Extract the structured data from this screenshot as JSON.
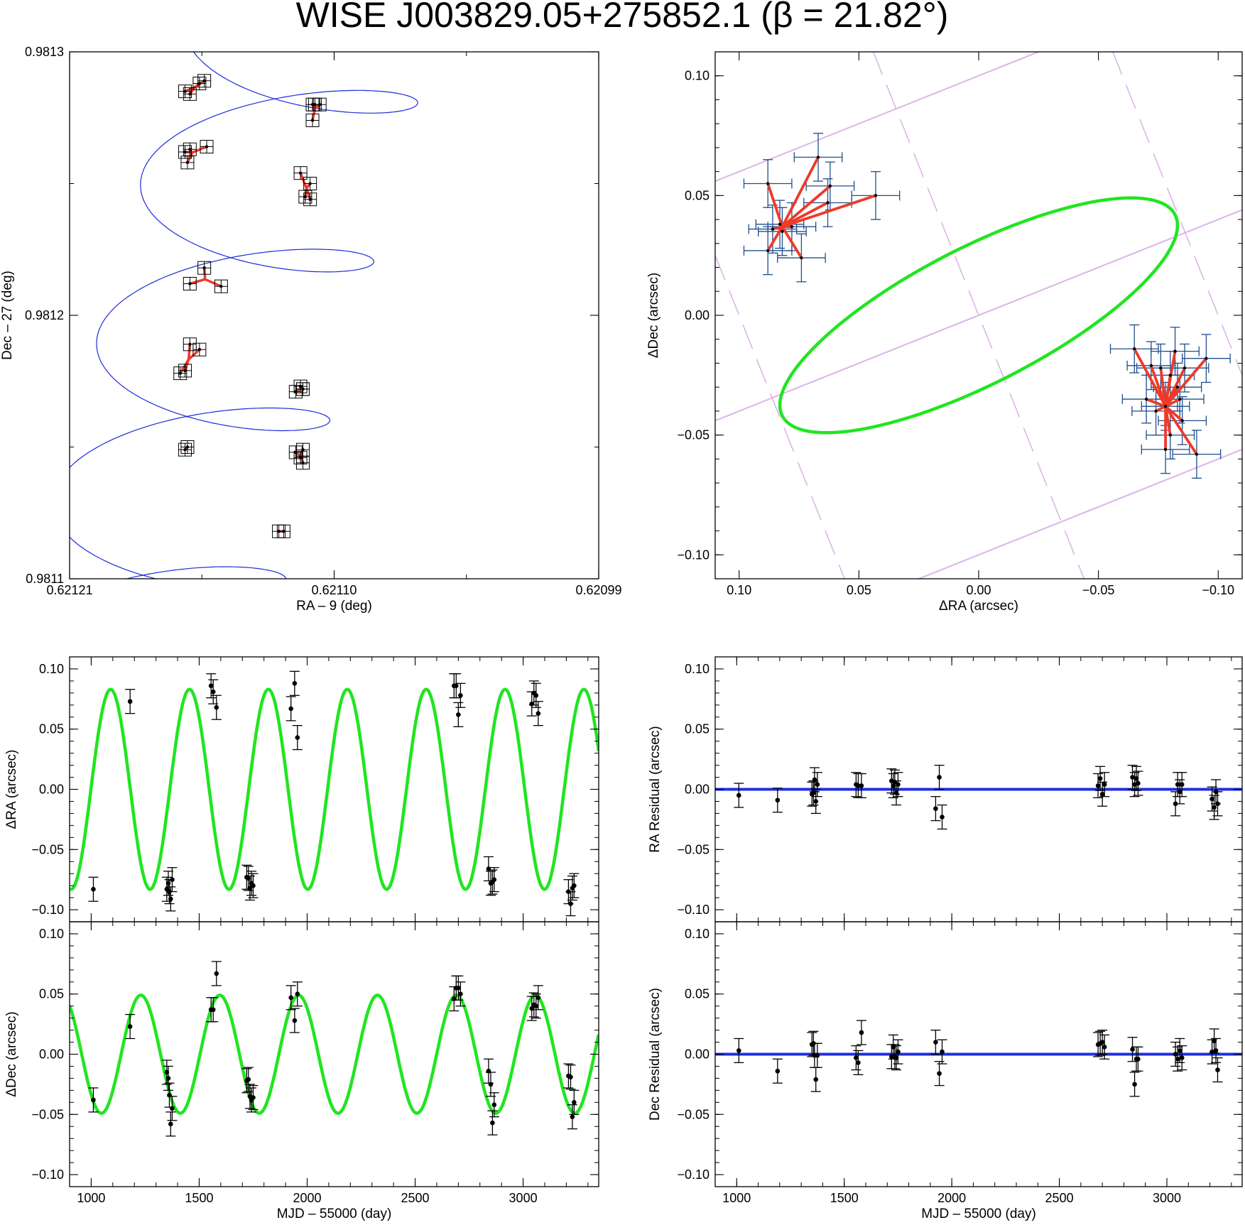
{
  "title": "WISE J003829.05+275852.1   (β = 21.82°)",
  "colors": {
    "fit": "#21e521",
    "track": "#1c2bd9",
    "red": "#ee3a2a",
    "errorbar": "#1f4e8c",
    "parallax_lines": "#dcb4e8",
    "residual_line": "#1f2fe0",
    "points": "#000000"
  },
  "chart_data": [
    {
      "id": "sky",
      "type": "line",
      "xlabel": "RA – 9 (deg)",
      "ylabel": "Dec – 27 (deg)",
      "xlim": [
        0.62121,
        0.62099
      ],
      "ylim": [
        0.9811,
        0.9813
      ],
      "xticks": [
        0.62121,
        0.6211,
        0.62099
      ],
      "xtick_labels": [
        "0.62121",
        "0.62110",
        "0.62099"
      ],
      "yticks": [
        0.9811,
        0.9812,
        0.9813
      ],
      "ytick_labels": [
        "0.9811",
        "0.9812",
        "0.9813"
      ],
      "track": {
        "ra0": 0.621155,
        "dec0": 0.98116,
        "mu_ra_deg_per_day": -5e-08,
        "mu_dec_deg_per_day": 1.65e-07,
        "parallax_ra_amp": 5.3e-05,
        "parallax_dec_amp": 1.65e-05,
        "mjd_start": 820,
        "mjd_end": 3380
      },
      "groups": [
        {
          "mjd": 1010,
          "points": [
            [
              0.621121,
              0.981118
            ],
            [
              0.621123,
              0.981118
            ]
          ]
        },
        {
          "mjd": 1190,
          "points": [
            [
              0.621161,
              0.98115
            ],
            [
              0.621162,
              0.981149
            ]
          ]
        },
        {
          "mjd": 1360,
          "points": [
            [
              0.621114,
              0.981146
            ],
            [
              0.621113,
              0.981149
            ],
            [
              0.621116,
              0.981148
            ],
            [
              0.621113,
              0.981144
            ]
          ]
        },
        {
          "mjd": 1560,
          "points": [
            [
              0.621164,
              0.981178
            ],
            [
              0.621162,
              0.981179
            ],
            [
              0.621156,
              0.981187
            ],
            [
              0.62116,
              0.981189
            ]
          ]
        },
        {
          "mjd": 1730,
          "points": [
            [
              0.621114,
              0.981173
            ],
            [
              0.621113,
              0.981172
            ],
            [
              0.621116,
              0.981171
            ],
            [
              0.621113,
              0.981172
            ]
          ]
        },
        {
          "mjd": 1950,
          "points": [
            [
              0.621154,
              0.981218
            ],
            [
              0.62116,
              0.981212
            ],
            [
              0.621147,
              0.981211
            ]
          ]
        },
        {
          "mjd": 2690,
          "points": [
            [
              0.621161,
              0.981258
            ],
            [
              0.62116,
              0.981263
            ],
            [
              0.621153,
              0.981264
            ],
            [
              0.621162,
              0.981262
            ]
          ]
        },
        {
          "mjd": 2860,
          "points": [
            [
              0.621114,
              0.981254
            ],
            [
              0.62111,
              0.98125
            ],
            [
              0.621112,
              0.981245
            ],
            [
              0.62111,
              0.981244
            ]
          ]
        },
        {
          "mjd": 3070,
          "points": [
            [
              0.621162,
              0.981285
            ],
            [
              0.62116,
              0.981284
            ],
            [
              0.621156,
              0.981288
            ],
            [
              0.621154,
              0.981289
            ]
          ]
        },
        {
          "mjd": 3230,
          "points": [
            [
              0.621109,
              0.98128
            ],
            [
              0.621106,
              0.98128
            ],
            [
              0.621109,
              0.981274
            ],
            [
              0.621108,
              0.98128
            ]
          ]
        }
      ]
    },
    {
      "id": "ellipse",
      "type": "scatter",
      "xlabel": "ΔRA (arcsec)",
      "ylabel": "ΔDec (arcsec)",
      "xlim": [
        0.11,
        -0.11
      ],
      "ylim": [
        -0.11,
        0.11
      ],
      "xticks": [
        0.1,
        0.05,
        0.0,
        -0.05,
        -0.1
      ],
      "xtick_labels": [
        "0.10",
        "0.05",
        "0.00",
        "−0.05",
        "−0.10"
      ],
      "yticks": [
        -0.1,
        -0.05,
        0.0,
        0.05,
        0.1
      ],
      "ytick_labels": [
        "−0.10",
        "−0.05",
        "0.00",
        "0.05",
        "0.10"
      ],
      "parallax_ellipse": {
        "ra_amp": 0.083,
        "dec_amp": 0.049,
        "phase_offset_deg": 140
      },
      "ecliptic_slope": -0.4,
      "ecliptic_offsets": [
        0.0,
        0.1,
        -0.1
      ],
      "perpendicular_offsets": [
        0.0,
        0.1,
        -0.1
      ],
      "clusters": [
        {
          "center": [
            0.082,
            0.037
          ],
          "points": [
            [
              0.088,
              0.055
            ],
            [
              0.086,
              0.036
            ],
            [
              0.088,
              0.027
            ],
            [
              0.074,
              0.024
            ],
            [
              0.078,
              0.037
            ],
            [
              0.067,
              0.066
            ],
            [
              0.063,
              0.047
            ],
            [
              0.062,
              0.054
            ],
            [
              0.043,
              0.05
            ],
            [
              0.083,
              0.038
            ],
            [
              0.082,
              0.035
            ]
          ],
          "xerr": 0.01,
          "yerr": 0.01
        },
        {
          "center": [
            -0.078,
            -0.038
          ],
          "points": [
            [
              -0.065,
              -0.014
            ],
            [
              -0.072,
              -0.021
            ],
            [
              -0.082,
              -0.015
            ],
            [
              -0.095,
              -0.018
            ],
            [
              -0.083,
              -0.03
            ],
            [
              -0.086,
              -0.022
            ],
            [
              -0.08,
              -0.05
            ],
            [
              -0.078,
              -0.056
            ],
            [
              -0.091,
              -0.058
            ],
            [
              -0.085,
              -0.044
            ],
            [
              -0.074,
              -0.04
            ],
            [
              -0.08,
              -0.025
            ],
            [
              -0.076,
              -0.022
            ],
            [
              -0.07,
              -0.035
            ],
            [
              -0.084,
              -0.035
            ],
            [
              -0.078,
              -0.038
            ]
          ],
          "xerr": 0.01,
          "yerr": 0.01
        }
      ]
    },
    {
      "id": "dra_time",
      "type": "scatter",
      "xlabel": "",
      "ylabel": "ΔRA (arcsec)",
      "xlim": [
        900,
        3350
      ],
      "ylim": [
        -0.11,
        0.11
      ],
      "xticks": [
        1000,
        1500,
        2000,
        2500,
        3000
      ],
      "xtick_labels": [],
      "yticks": [
        -0.1,
        -0.05,
        0.0,
        0.05,
        0.1
      ],
      "ytick_labels": [
        "−0.10",
        "−0.05",
        "0.00",
        "0.05",
        "0.10"
      ],
      "fit": {
        "amp": 0.083,
        "period": 365.25,
        "phase_mjd": 1090
      },
      "x": [
        1010,
        1180,
        1350,
        1357,
        1362,
        1368,
        1375,
        1555,
        1565,
        1580,
        1720,
        1728,
        1735,
        1742,
        1750,
        1925,
        1942,
        1955,
        2680,
        2690,
        2700,
        2710,
        2840,
        2850,
        2858,
        2866,
        3040,
        3050,
        3060,
        3070,
        3210,
        3220,
        3228,
        3236
      ],
      "y": [
        -0.083,
        0.073,
        -0.083,
        -0.078,
        -0.085,
        -0.091,
        -0.075,
        0.086,
        0.081,
        0.068,
        -0.073,
        -0.074,
        -0.082,
        -0.078,
        -0.08,
        0.067,
        0.088,
        0.043,
        0.086,
        0.086,
        0.062,
        0.078,
        -0.066,
        -0.078,
        -0.077,
        -0.075,
        0.071,
        0.08,
        0.078,
        0.063,
        -0.085,
        -0.095,
        -0.082,
        -0.08
      ],
      "yerr": 0.01
    },
    {
      "id": "ddec_time",
      "type": "scatter",
      "xlabel": "MJD – 55000 (day)",
      "ylabel": "ΔDec (arcsec)",
      "xlim": [
        900,
        3350
      ],
      "ylim": [
        -0.11,
        0.11
      ],
      "xticks": [
        1000,
        1500,
        2000,
        2500,
        3000
      ],
      "xtick_labels": [
        "1000",
        "1500",
        "2000",
        "2500",
        "3000"
      ],
      "yticks": [
        -0.1,
        -0.05,
        0.0,
        0.05,
        0.1
      ],
      "ytick_labels": [
        "−0.10",
        "−0.05",
        "0.00",
        "0.05",
        "0.10"
      ],
      "fit": {
        "amp": 0.049,
        "period": 365.25,
        "phase_mjd": 1230
      },
      "x": [
        1010,
        1180,
        1350,
        1357,
        1362,
        1368,
        1375,
        1555,
        1565,
        1580,
        1720,
        1728,
        1735,
        1742,
        1750,
        1925,
        1942,
        1955,
        2680,
        2690,
        2700,
        2710,
        2840,
        2850,
        2858,
        2866,
        3040,
        3050,
        3060,
        3070,
        3210,
        3220,
        3228,
        3236
      ],
      "y": [
        -0.038,
        0.023,
        -0.015,
        -0.02,
        -0.034,
        -0.058,
        -0.045,
        0.037,
        0.037,
        0.067,
        -0.022,
        -0.021,
        -0.035,
        -0.038,
        -0.036,
        0.047,
        0.028,
        0.05,
        0.046,
        0.055,
        0.055,
        0.05,
        -0.014,
        -0.025,
        -0.057,
        -0.042,
        0.038,
        0.041,
        0.04,
        0.047,
        -0.018,
        -0.019,
        -0.052,
        -0.04
      ],
      "yerr": 0.01
    },
    {
      "id": "ra_resid",
      "type": "scatter",
      "xlabel": "",
      "ylabel": "RA Residual (arcsec)",
      "xlim": [
        900,
        3350
      ],
      "ylim": [
        -0.11,
        0.11
      ],
      "xticks": [
        1000,
        1500,
        2000,
        2500,
        3000
      ],
      "xtick_labels": [],
      "yticks": [
        -0.1,
        -0.05,
        0.0,
        0.05,
        0.1
      ],
      "ytick_labels": [
        "−0.10",
        "−0.05",
        "0.00",
        "0.05",
        "0.10"
      ],
      "zero_line": true,
      "x": [
        1010,
        1190,
        1350,
        1357,
        1362,
        1368,
        1375,
        1555,
        1565,
        1580,
        1720,
        1728,
        1735,
        1742,
        1750,
        1925,
        1942,
        1955,
        2680,
        2690,
        2700,
        2710,
        2840,
        2850,
        2858,
        2866,
        3040,
        3050,
        3060,
        3070,
        3210,
        3220,
        3228,
        3236
      ],
      "y": [
        -0.005,
        -0.009,
        -0.004,
        -0.003,
        0.008,
        -0.01,
        0.004,
        0.004,
        0.003,
        0.003,
        0.007,
        0.003,
        0.006,
        -0.003,
        0.004,
        -0.016,
        0.01,
        -0.023,
        0.003,
        0.009,
        -0.004,
        0.004,
        0.01,
        0.004,
        0.009,
        0.005,
        -0.012,
        0.004,
        -0.002,
        0.004,
        -0.008,
        -0.015,
        -0.002,
        -0.012
      ],
      "yerr": 0.01
    },
    {
      "id": "dec_resid",
      "type": "scatter",
      "xlabel": "MJD – 55000 (day)",
      "ylabel": "Dec Residual (arcsec)",
      "xlim": [
        900,
        3350
      ],
      "ylim": [
        -0.11,
        0.11
      ],
      "xticks": [
        1000,
        1500,
        2000,
        2500,
        3000
      ],
      "xtick_labels": [
        "1000",
        "1500",
        "2000",
        "2500",
        "3000"
      ],
      "yticks": [
        -0.1,
        -0.05,
        0.0,
        0.05,
        0.1
      ],
      "ytick_labels": [
        "−0.10",
        "−0.05",
        "0.00",
        "0.05",
        "0.10"
      ],
      "zero_line": true,
      "x": [
        1010,
        1190,
        1350,
        1357,
        1362,
        1368,
        1375,
        1555,
        1565,
        1580,
        1720,
        1728,
        1735,
        1742,
        1750,
        1925,
        1942,
        1955,
        2680,
        2690,
        2700,
        2710,
        2840,
        2850,
        2858,
        2866,
        3040,
        3050,
        3060,
        3070,
        3210,
        3220,
        3228,
        3236
      ],
      "y": [
        0.003,
        -0.014,
        0.008,
        0.009,
        -0.001,
        -0.021,
        -0.001,
        -0.003,
        -0.007,
        0.018,
        -0.002,
        0.006,
        -0.002,
        -0.003,
        0.002,
        0.01,
        -0.016,
        0.002,
        0.008,
        0.009,
        0.01,
        0.006,
        0.004,
        -0.025,
        -0.004,
        -0.004,
        0.0,
        -0.004,
        0.003,
        -0.003,
        0.002,
        0.011,
        0.003,
        -0.013
      ],
      "yerr": 0.01
    }
  ]
}
